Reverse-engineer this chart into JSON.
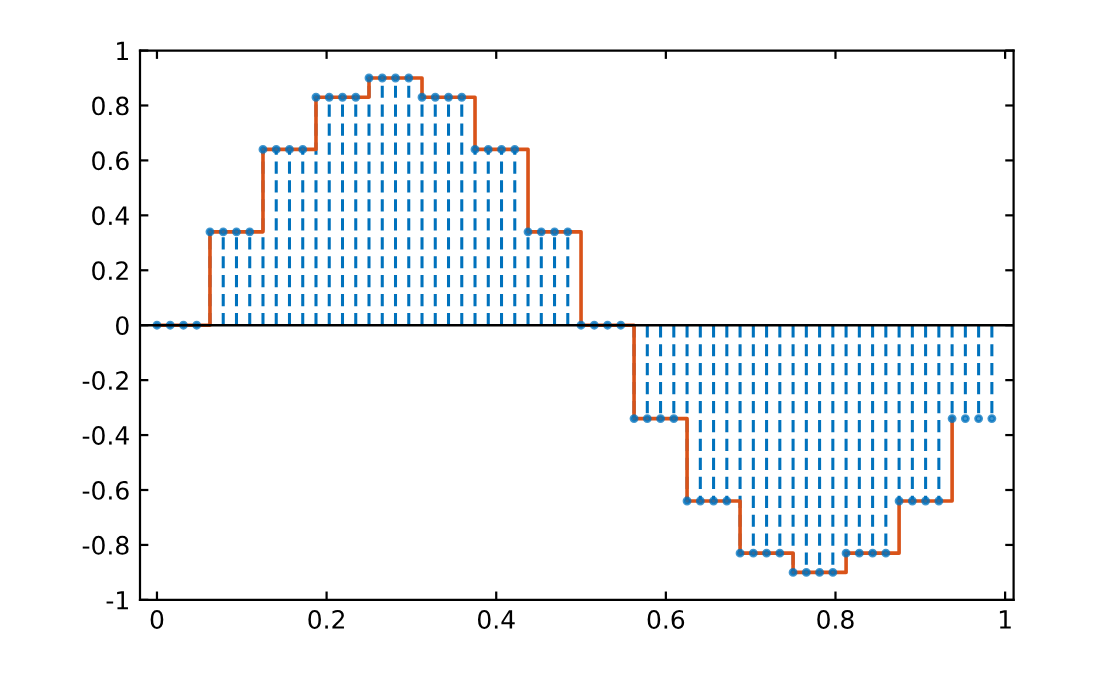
{
  "chart_data": {
    "type": "lollipop",
    "xlim": [
      -0.02,
      1.01
    ],
    "xticks": [
      0,
      0.2,
      0.4,
      0.6,
      0.8,
      1
    ],
    "ylim": [
      -1,
      1
    ],
    "yticks": [
      -1,
      -0.8,
      -0.6,
      -0.4,
      -0.2,
      0,
      0.2,
      0.4,
      0.6,
      0.8,
      1
    ],
    "grid": false,
    "marker": "circle",
    "ref_lines": [
      {
        "axis": "y",
        "value": 0,
        "color": "#000000",
        "line_style": "solid"
      }
    ],
    "series": [
      {
        "color": "#0072bd",
        "line_style": "dashed",
        "x": [
          0,
          0.015625,
          0.03125,
          0.046875,
          0.0625,
          0.078125,
          0.09375,
          0.109375,
          0.125,
          0.140625,
          0.15625,
          0.171875,
          0.1875,
          0.203125,
          0.21875,
          0.234375,
          0.25,
          0.265625,
          0.28125,
          0.296875,
          0.3125,
          0.328125,
          0.34375,
          0.359375,
          0.375,
          0.390625,
          0.40625,
          0.421875,
          0.4375,
          0.453125,
          0.46875,
          0.484375,
          0.5,
          0.515625,
          0.53125,
          0.546875,
          0.5625,
          0.578125,
          0.59375,
          0.609375,
          0.625,
          0.640625,
          0.65625,
          0.671875,
          0.6875,
          0.703125,
          0.71875,
          0.734375,
          0.75,
          0.765625,
          0.78125,
          0.796875,
          0.8125,
          0.828125,
          0.84375,
          0.859375,
          0.875,
          0.890625,
          0.90625,
          0.921875,
          0.9375,
          0.953125,
          0.96875,
          0.984375
        ],
        "values": [
          0,
          0,
          0,
          0,
          0.34,
          0.34,
          0.34,
          0.34,
          0.64,
          0.64,
          0.64,
          0.64,
          0.83,
          0.83,
          0.83,
          0.83,
          0.9,
          0.9,
          0.9,
          0.9,
          0.83,
          0.83,
          0.83,
          0.83,
          0.64,
          0.64,
          0.64,
          0.64,
          0.34,
          0.34,
          0.34,
          0.34,
          0,
          0,
          0,
          0,
          -0.34,
          -0.34,
          -0.34,
          -0.34,
          -0.64,
          -0.64,
          -0.64,
          -0.64,
          -0.83,
          -0.83,
          -0.83,
          -0.83,
          -0.9,
          -0.9,
          -0.9,
          -0.9,
          -0.83,
          -0.83,
          -0.83,
          -0.83,
          -0.64,
          -0.64,
          -0.64,
          -0.64,
          -0.34,
          -0.34,
          -0.34,
          -0.34
        ]
      },
      {
        "type": "step",
        "color": "#d95319",
        "line_style": "solid",
        "marker": "none",
        "x": [
          0,
          0.0625,
          0.125,
          0.1875,
          0.25,
          0.3125,
          0.375,
          0.4375,
          0.5,
          0.5625,
          0.625,
          0.6875,
          0.75,
          0.8125,
          0.875,
          0.9375
        ],
        "values": [
          0,
          0.34,
          0.64,
          0.83,
          0.9,
          0.83,
          0.64,
          0.34,
          0,
          -0.34,
          -0.64,
          -0.83,
          -0.9,
          -0.83,
          -0.64,
          -0.34
        ]
      }
    ]
  }
}
